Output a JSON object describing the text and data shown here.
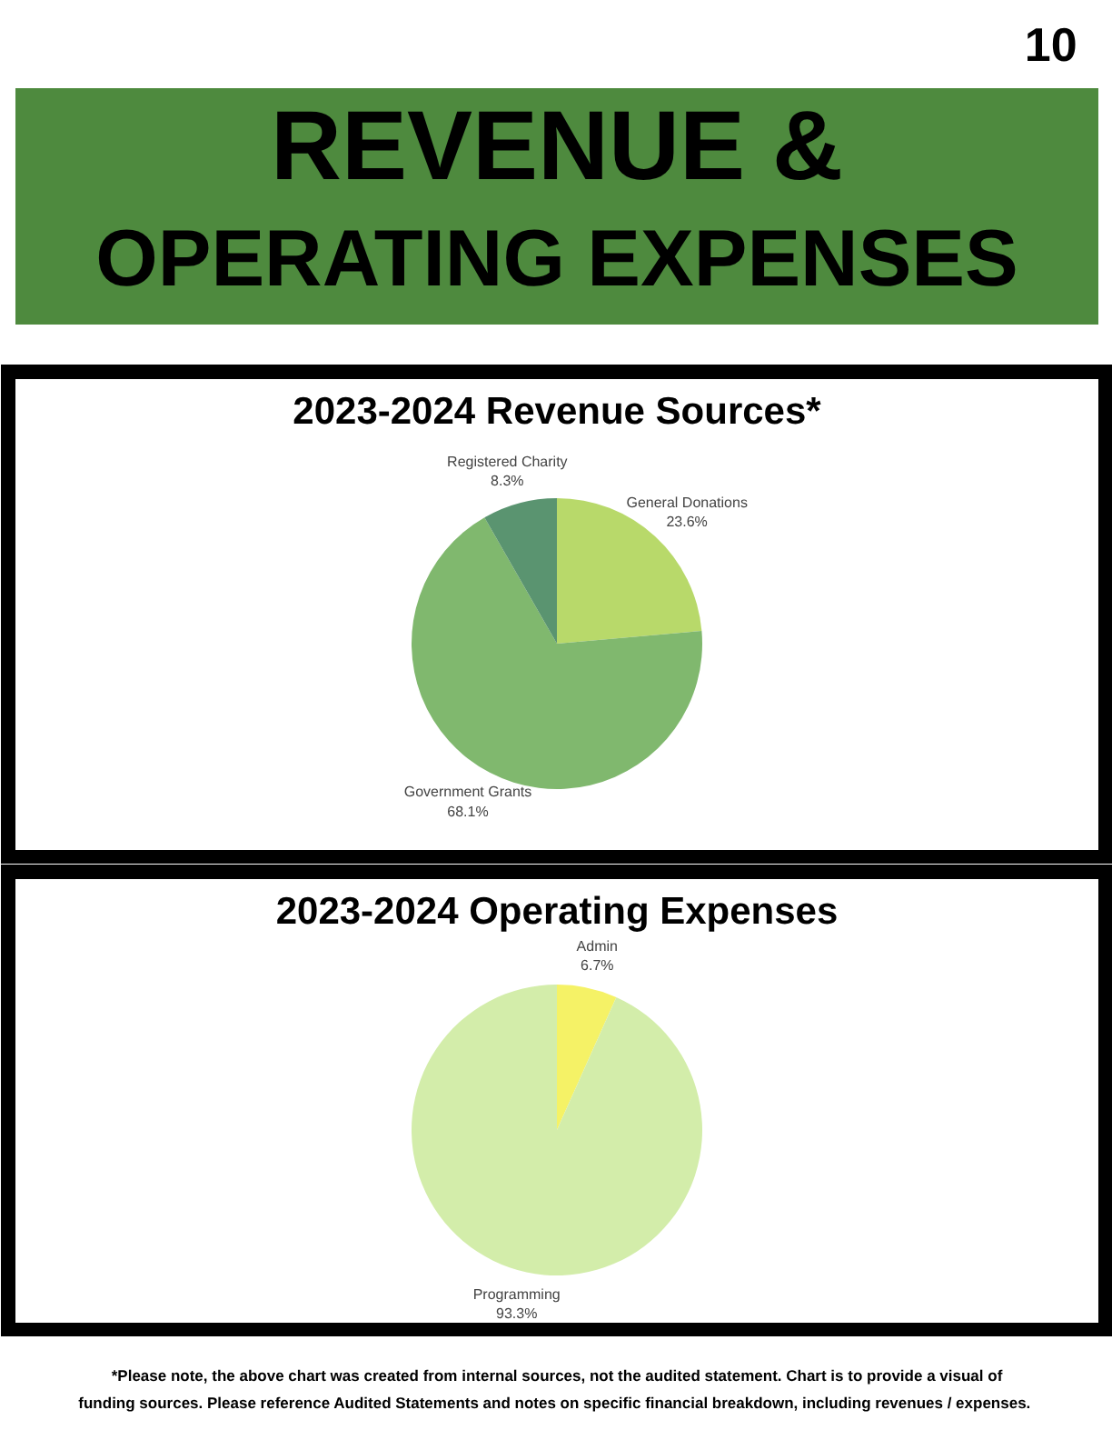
{
  "chart_data": [
    {
      "type": "other",
      "title": "REVENUE &\nOPERATING EXPENSES",
      "annotations": [
        "10"
      ]
    },
    {
      "type": "pie",
      "title": "2023-2024 Revenue Sources*",
      "categories": [
        "General Donations",
        "Government Grants",
        "Registered Charity"
      ],
      "values": [
        23.6,
        68.1,
        8.3
      ],
      "colors": [
        "#b8d96a",
        "#80b86e",
        "#5a9470"
      ],
      "value_labels": [
        "23.6%",
        "68.1%",
        "8.3%"
      ]
    },
    {
      "type": "pie",
      "title": "2023-2024 Operating Expenses",
      "categories": [
        "Admin",
        "Programming"
      ],
      "values": [
        6.7,
        93.3
      ],
      "colors": [
        "#f5f266",
        "#d3edaa"
      ],
      "value_labels": [
        "6.7%",
        "93.3%"
      ],
      "annotations": [
        "*Please note, the above chart was created from internal sources, not the audited statement. Chart is to provide a visual of funding sources.  Please reference Audited Statements and notes on specific financial breakdown, including revenues / expenses."
      ]
    }
  ]
}
